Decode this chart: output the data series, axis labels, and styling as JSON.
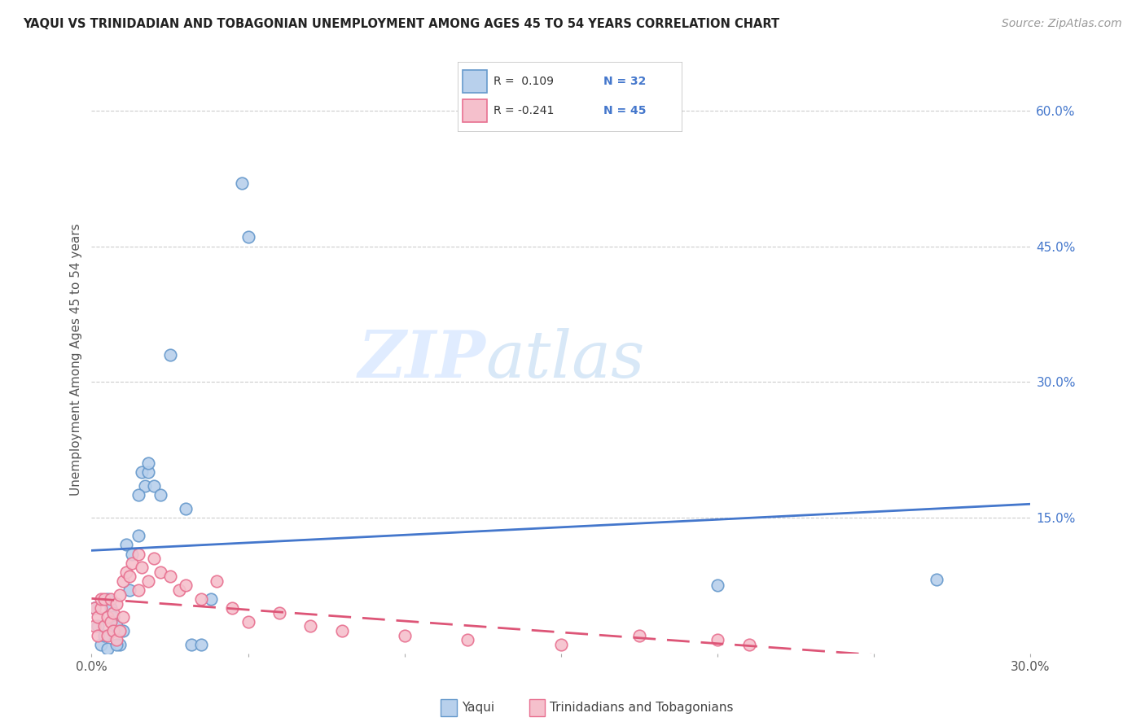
{
  "title": "YAQUI VS TRINIDADIAN AND TOBAGONIAN UNEMPLOYMENT AMONG AGES 45 TO 54 YEARS CORRELATION CHART",
  "source": "Source: ZipAtlas.com",
  "ylabel": "Unemployment Among Ages 45 to 54 years",
  "xlim": [
    0.0,
    0.3
  ],
  "ylim": [
    0.0,
    0.65
  ],
  "xtick_vals": [
    0.0,
    0.05,
    0.1,
    0.15,
    0.2,
    0.25,
    0.3
  ],
  "xtick_labels": [
    "0.0%",
    "",
    "",
    "",
    "",
    "",
    "30.0%"
  ],
  "ytick_vals": [
    0.0,
    0.15,
    0.3,
    0.45,
    0.6
  ],
  "ytick_labels": [
    "",
    "15.0%",
    "30.0%",
    "45.0%",
    "60.0%"
  ],
  "blue_fill": "#B8D0EC",
  "blue_edge": "#6699CC",
  "pink_fill": "#F5C0CC",
  "pink_edge": "#E87090",
  "trend_blue": "#4477CC",
  "trend_pink": "#DD5577",
  "watermark_zip": "ZIP",
  "watermark_atlas": "atlas",
  "legend_r1": "R =  0.109",
  "legend_n1": "N = 32",
  "legend_r2": "R = -0.241",
  "legend_n2": "N = 45",
  "grid_color": "#CCCCCC",
  "yaqui_x": [
    0.001,
    0.002,
    0.003,
    0.004,
    0.005,
    0.006,
    0.007,
    0.008,
    0.009,
    0.01,
    0.011,
    0.013,
    0.015,
    0.016,
    0.017,
    0.018,
    0.02,
    0.022,
    0.025,
    0.03,
    0.032,
    0.035,
    0.005,
    0.008,
    0.012,
    0.015,
    0.018,
    0.038,
    0.048,
    0.05,
    0.2,
    0.27
  ],
  "yaqui_y": [
    0.05,
    0.03,
    0.01,
    0.02,
    0.06,
    0.05,
    0.04,
    0.03,
    0.01,
    0.025,
    0.12,
    0.11,
    0.13,
    0.2,
    0.185,
    0.2,
    0.185,
    0.175,
    0.33,
    0.16,
    0.01,
    0.01,
    0.005,
    0.01,
    0.07,
    0.175,
    0.21,
    0.06,
    0.52,
    0.46,
    0.075,
    0.082
  ],
  "tnt_x": [
    0.001,
    0.001,
    0.002,
    0.002,
    0.003,
    0.003,
    0.004,
    0.004,
    0.005,
    0.005,
    0.006,
    0.006,
    0.007,
    0.007,
    0.008,
    0.008,
    0.009,
    0.009,
    0.01,
    0.01,
    0.011,
    0.012,
    0.013,
    0.015,
    0.015,
    0.016,
    0.018,
    0.02,
    0.022,
    0.025,
    0.028,
    0.03,
    0.035,
    0.04,
    0.045,
    0.05,
    0.06,
    0.07,
    0.08,
    0.1,
    0.12,
    0.15,
    0.175,
    0.2,
    0.21
  ],
  "tnt_y": [
    0.03,
    0.05,
    0.04,
    0.02,
    0.05,
    0.06,
    0.03,
    0.06,
    0.02,
    0.04,
    0.06,
    0.035,
    0.045,
    0.025,
    0.055,
    0.015,
    0.065,
    0.025,
    0.04,
    0.08,
    0.09,
    0.085,
    0.1,
    0.11,
    0.07,
    0.095,
    0.08,
    0.105,
    0.09,
    0.085,
    0.07,
    0.075,
    0.06,
    0.08,
    0.05,
    0.035,
    0.045,
    0.03,
    0.025,
    0.02,
    0.015,
    0.01,
    0.02,
    0.015,
    0.01
  ]
}
